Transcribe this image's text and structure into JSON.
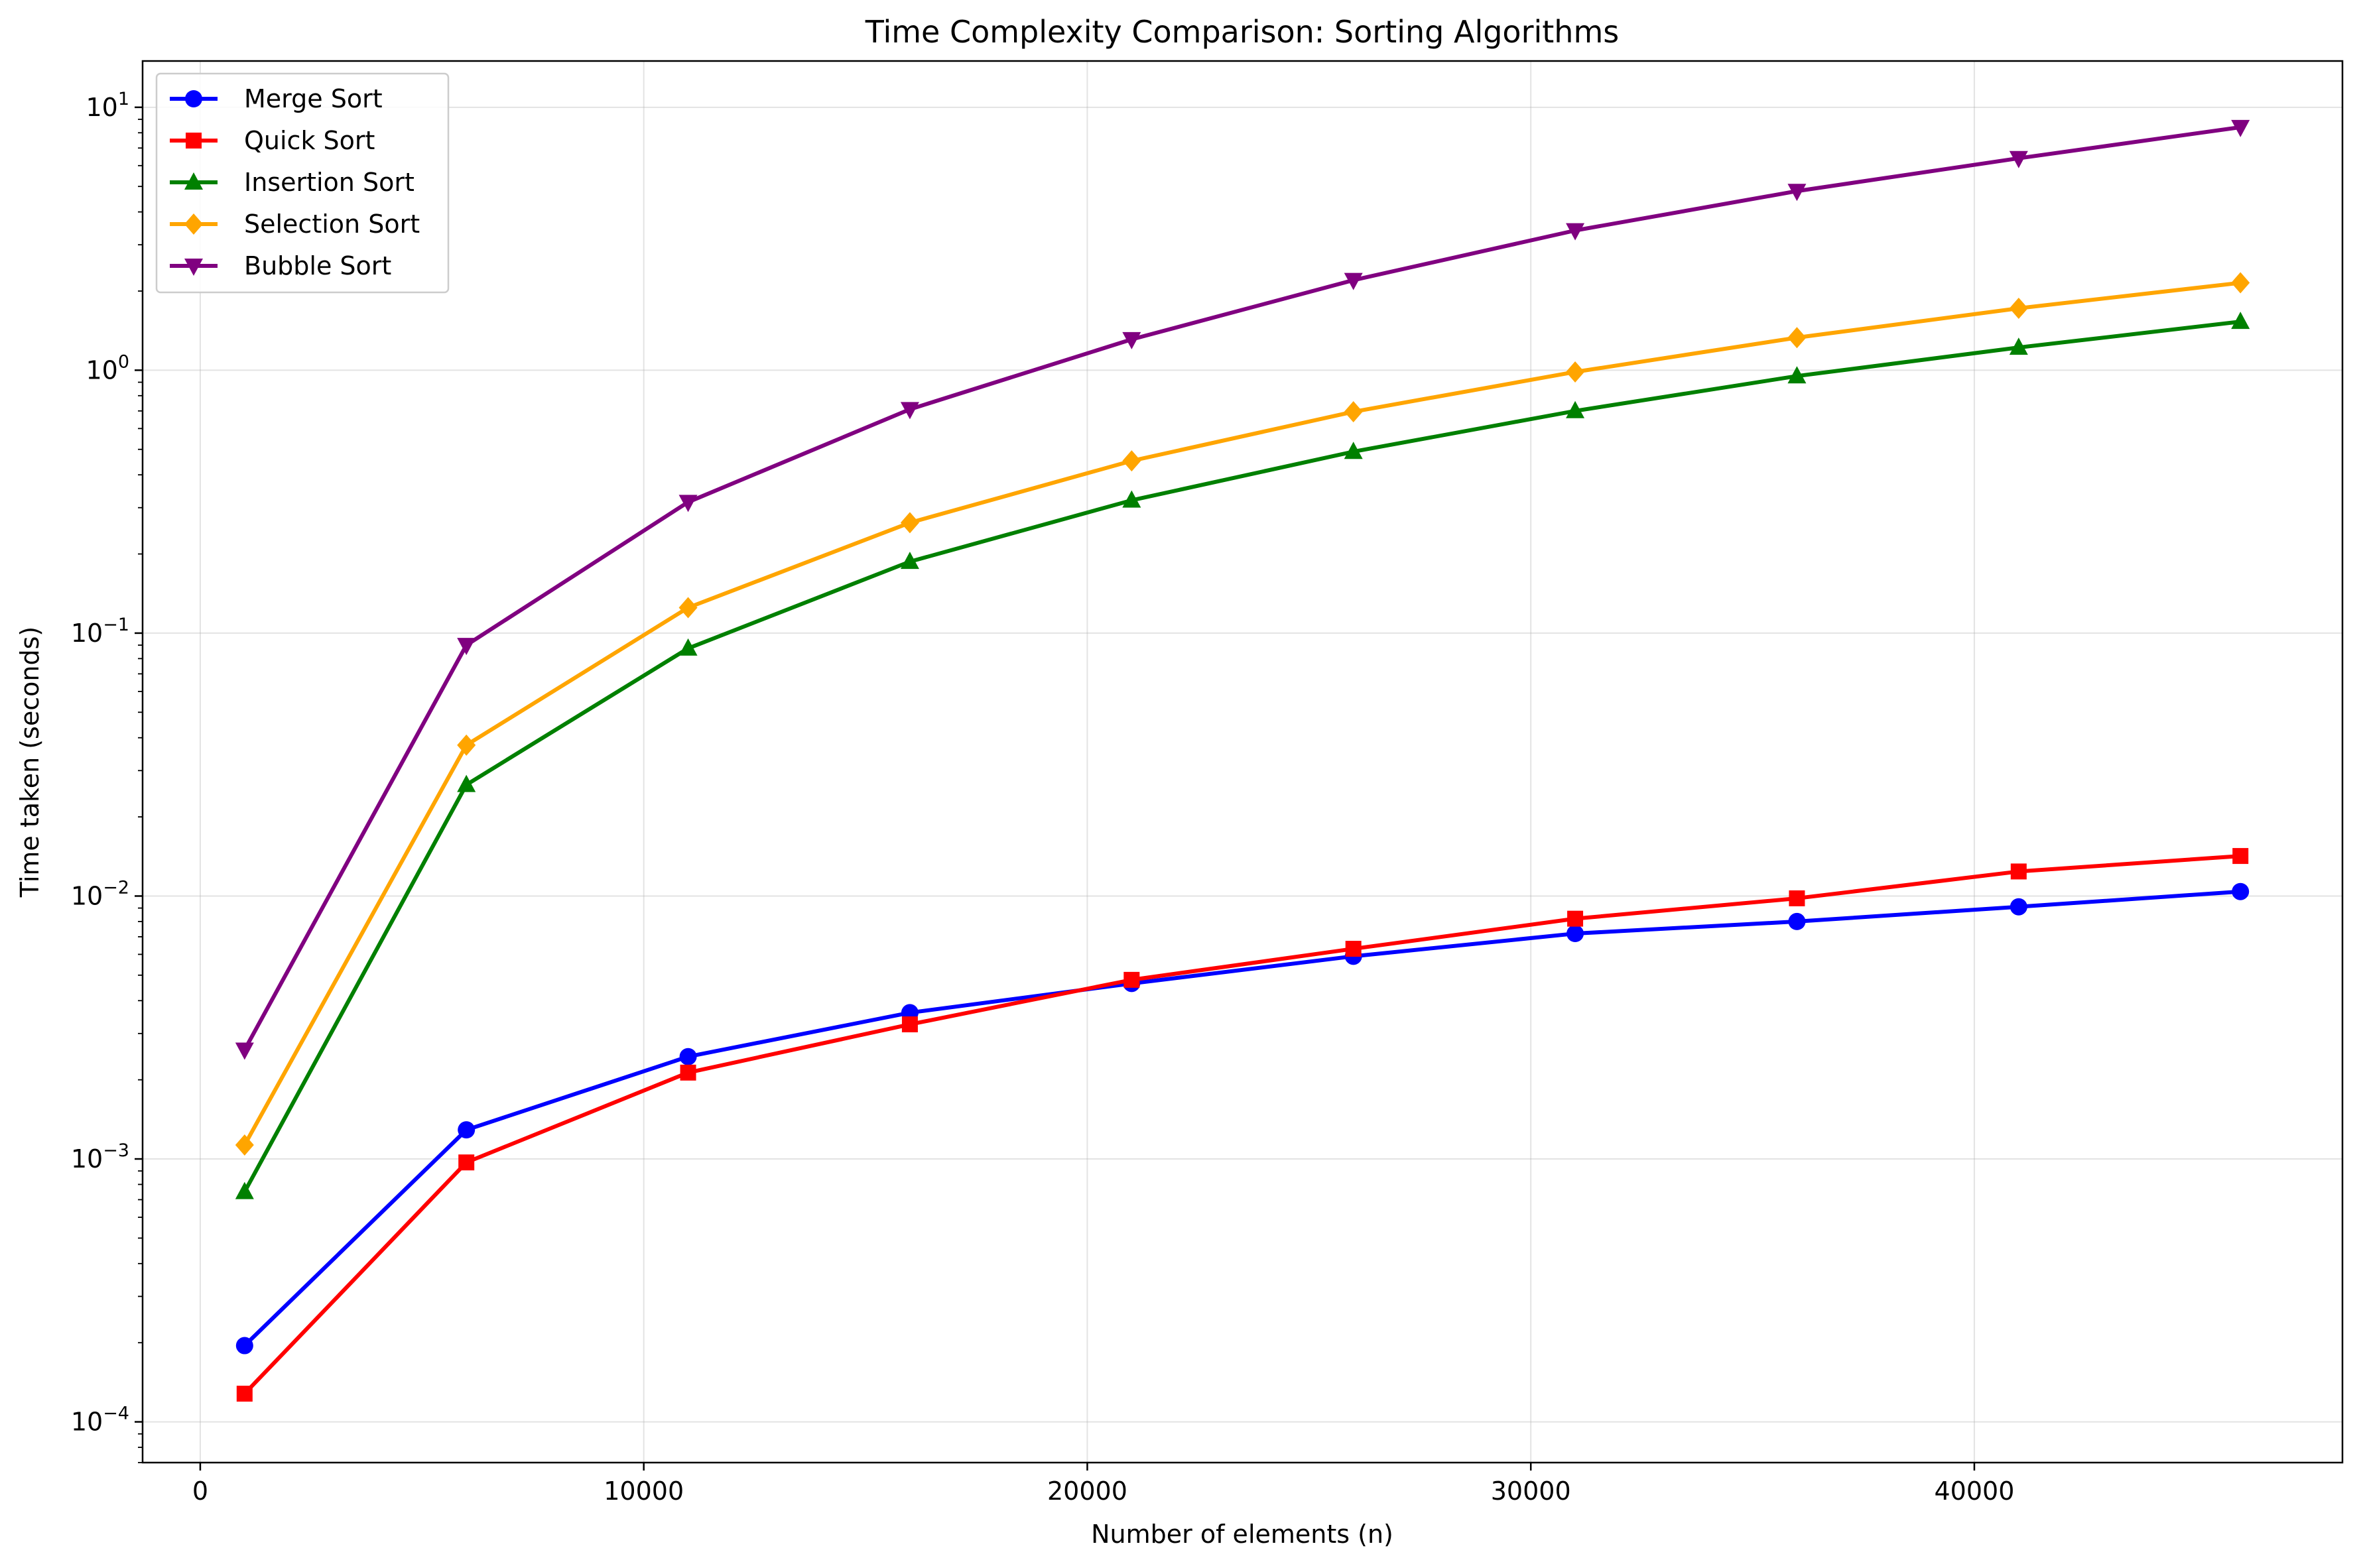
{
  "chart_data": {
    "type": "line",
    "title": "Time Complexity Comparison: Sorting Algorithms",
    "xlabel": "Number of elements (n)",
    "ylabel": "Time taken (seconds)",
    "yscale": "log",
    "xlim": [
      -1300,
      48300
    ],
    "ylim": [
      7e-05,
      15
    ],
    "grid": true,
    "legend_position": "top-left",
    "x": [
      1000,
      6000,
      11000,
      16000,
      21000,
      26000,
      31000,
      36000,
      41000,
      46000
    ],
    "x_ticks": [
      {
        "value": 0,
        "label": "0"
      },
      {
        "value": 10000,
        "label": "10000"
      },
      {
        "value": 20000,
        "label": "20000"
      },
      {
        "value": 30000,
        "label": "30000"
      },
      {
        "value": 40000,
        "label": "40000"
      }
    ],
    "y_ticks": [
      {
        "value": 0.0001,
        "base": "10",
        "exp": "−4"
      },
      {
        "value": 0.001,
        "base": "10",
        "exp": "−3"
      },
      {
        "value": 0.01,
        "base": "10",
        "exp": "−2"
      },
      {
        "value": 0.1,
        "base": "10",
        "exp": "−1"
      },
      {
        "value": 1,
        "base": "10",
        "exp": "0"
      },
      {
        "value": 10,
        "base": "10",
        "exp": "1"
      }
    ],
    "series": [
      {
        "name": "Merge Sort",
        "color": "#0000ff",
        "marker": "circle",
        "values": [
          0.000195,
          0.00129,
          0.00245,
          0.0036,
          0.00465,
          0.0059,
          0.0072,
          0.008,
          0.0091,
          0.0104
        ]
      },
      {
        "name": "Quick Sort",
        "color": "#ff0000",
        "marker": "square",
        "values": [
          0.000128,
          0.00097,
          0.00213,
          0.00325,
          0.0048,
          0.0063,
          0.0082,
          0.0098,
          0.0124,
          0.0142
        ]
      },
      {
        "name": "Insertion Sort",
        "color": "#008000",
        "marker": "triangle-up",
        "values": [
          0.00075,
          0.0265,
          0.0875,
          0.187,
          0.32,
          0.49,
          0.7,
          0.95,
          1.22,
          1.53
        ]
      },
      {
        "name": "Selection Sort",
        "color": "#ffa500",
        "marker": "diamond",
        "values": [
          0.00113,
          0.0375,
          0.125,
          0.263,
          0.452,
          0.695,
          0.985,
          1.33,
          1.72,
          2.15
        ]
      },
      {
        "name": "Bubble Sort",
        "color": "#800080",
        "marker": "triangle-down",
        "values": [
          0.0026,
          0.09,
          0.315,
          0.71,
          1.31,
          2.2,
          3.4,
          4.8,
          6.4,
          8.4
        ]
      }
    ]
  }
}
